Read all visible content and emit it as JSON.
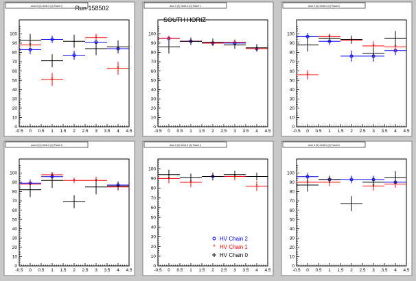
{
  "colors": {
    "background": "#c8c8c8",
    "pad": "#ffffff",
    "red": "#ff0000",
    "blue": "#0000ff",
    "black": "#000000"
  },
  "legend": {
    "entries": [
      {
        "label": "HV Chain 2",
        "series": "HV Chain 2"
      },
      {
        "label": "HV Chain 1",
        "series": "HV Chain 1"
      },
      {
        "label": "HV Chain 0",
        "series": "HV Chain 0"
      }
    ],
    "placement": "bottom-right of panel 5"
  },
  "chart_data": [
    {
      "type": "scatter",
      "panel_title": "dom 0 (0) Orbit 0 (0) Panel 0",
      "annotation": "Run 158502",
      "xlim": [
        -0.5,
        4.5
      ],
      "ylim": [
        0,
        115
      ],
      "x_ticks": [
        "-0.5",
        "0",
        "0.5",
        "1",
        "1.5",
        "2",
        "2.5",
        "3",
        "3.5",
        "4",
        "4.5"
      ],
      "y_ticks": [
        "0",
        "10",
        "20",
        "30",
        "40",
        "50",
        "60",
        "70",
        "80",
        "90",
        "100"
      ],
      "series": [
        {
          "name": "HV Chain 2",
          "color": "blue",
          "points": [
            {
              "x": 0,
              "y": 83,
              "ex": 0.5,
              "ey": 5
            },
            {
              "x": 1,
              "y": 94,
              "ex": 0.5,
              "ey": 4
            },
            {
              "x": 2,
              "y": 77,
              "ex": 0.5,
              "ey": 5
            },
            {
              "x": 3,
              "y": 91,
              "ex": 0.5,
              "ey": 5
            },
            {
              "x": 4,
              "y": 84,
              "ex": 0.5,
              "ey": 5
            }
          ]
        },
        {
          "name": "HV Chain 1",
          "color": "red",
          "points": [
            {
              "x": 0,
              "y": 88,
              "ex": 0.5,
              "ey": 5
            },
            {
              "x": 1,
              "y": 51,
              "ex": 0.5,
              "ey": 7
            },
            {
              "x": 3,
              "y": 96,
              "ex": 0.5,
              "ey": 4
            },
            {
              "x": 4,
              "y": 63,
              "ex": 0.5,
              "ey": 7
            }
          ]
        },
        {
          "name": "HV Chain 0",
          "color": "black",
          "points": [
            {
              "x": 0,
              "y": 93,
              "ex": 0.5,
              "ey": 7
            },
            {
              "x": 1,
              "y": 71,
              "ex": 0.5,
              "ey": 7
            },
            {
              "x": 2,
              "y": 92,
              "ex": 0.5,
              "ey": 7
            },
            {
              "x": 3,
              "y": 84,
              "ex": 0.5,
              "ey": 7
            },
            {
              "x": 4,
              "y": 86,
              "ex": 0.5,
              "ey": 7
            }
          ]
        }
      ]
    },
    {
      "type": "scatter",
      "panel_title": "dom 0 (0) Orbit 0 (0) Panel 1",
      "annotation": "SOUTH HORIZ",
      "xlim": [
        -0.5,
        4.5
      ],
      "ylim": [
        0,
        115
      ],
      "x_ticks": [
        "-0.5",
        "0",
        "0.5",
        "1",
        "1.5",
        "2",
        "2.5",
        "3",
        "3.5",
        "4",
        "4.5"
      ],
      "y_ticks": [
        "0",
        "10",
        "20",
        "30",
        "40",
        "50",
        "60",
        "70",
        "80",
        "90",
        "100"
      ],
      "series": [
        {
          "name": "HV Chain 2",
          "color": "blue",
          "points": [
            {
              "x": 0,
              "y": 95,
              "ex": 0.5,
              "ey": 3
            },
            {
              "x": 1,
              "y": 92,
              "ex": 0.5,
              "ey": 3
            },
            {
              "x": 2,
              "y": 90,
              "ex": 0.5,
              "ey": 3
            },
            {
              "x": 3,
              "y": 90,
              "ex": 0.5,
              "ey": 3
            },
            {
              "x": 4,
              "y": 84,
              "ex": 0.5,
              "ey": 3
            }
          ]
        },
        {
          "name": "HV Chain 1",
          "color": "red",
          "points": [
            {
              "x": 0,
              "y": 95,
              "ex": 0.5,
              "ey": 3
            },
            {
              "x": 1,
              "y": 92,
              "ex": 0.5,
              "ey": 3
            },
            {
              "x": 2,
              "y": 90,
              "ex": 0.5,
              "ey": 3
            },
            {
              "x": 3,
              "y": 91,
              "ex": 0.5,
              "ey": 3
            },
            {
              "x": 4,
              "y": 84,
              "ex": 0.5,
              "ey": 3
            }
          ]
        },
        {
          "name": "HV Chain 0",
          "color": "black",
          "points": [
            {
              "x": 0,
              "y": 86,
              "ex": 0.5,
              "ey": 7
            },
            {
              "x": 1,
              "y": 92,
              "ex": 0.5,
              "ey": 4
            },
            {
              "x": 2,
              "y": 91,
              "ex": 0.5,
              "ey": 4
            },
            {
              "x": 3,
              "y": 88,
              "ex": 0.5,
              "ey": 4
            },
            {
              "x": 4,
              "y": 85,
              "ex": 0.5,
              "ey": 4
            }
          ]
        }
      ]
    },
    {
      "type": "scatter",
      "panel_title": "dom 0 (0) Orbit 0 (0) Panel 2",
      "annotation": "",
      "xlim": [
        -0.5,
        4.5
      ],
      "ylim": [
        0,
        115
      ],
      "x_ticks": [
        "-0.5",
        "0",
        "0.5",
        "1",
        "1.5",
        "2",
        "2.5",
        "3",
        "3.5",
        "4",
        "4.5"
      ],
      "y_ticks": [
        "0",
        "10",
        "20",
        "30",
        "40",
        "50",
        "60",
        "70",
        "80",
        "90",
        "100"
      ],
      "series": [
        {
          "name": "HV Chain 2",
          "color": "blue",
          "points": [
            {
              "x": 0,
              "y": 97,
              "ex": 0.5,
              "ey": 4
            },
            {
              "x": 1,
              "y": 92,
              "ex": 0.5,
              "ey": 4
            },
            {
              "x": 2,
              "y": 76,
              "ex": 0.5,
              "ey": 6
            },
            {
              "x": 3,
              "y": 76,
              "ex": 0.5,
              "ey": 6
            },
            {
              "x": 4,
              "y": 82,
              "ex": 0.5,
              "ey": 5
            }
          ]
        },
        {
          "name": "HV Chain 1",
          "color": "red",
          "points": [
            {
              "x": 0,
              "y": 56,
              "ex": 0.5,
              "ey": 5
            },
            {
              "x": 1,
              "y": 97,
              "ex": 0.5,
              "ey": 3
            },
            {
              "x": 2,
              "y": 93,
              "ex": 0.5,
              "ey": 4
            },
            {
              "x": 3,
              "y": 87,
              "ex": 0.5,
              "ey": 5
            },
            {
              "x": 4,
              "y": 86,
              "ex": 0.5,
              "ey": 5
            }
          ]
        },
        {
          "name": "HV Chain 0",
          "color": "black",
          "points": [
            {
              "x": 0,
              "y": 88,
              "ex": 0.5,
              "ey": 7
            },
            {
              "x": 1,
              "y": 95,
              "ex": 0.5,
              "ey": 4
            },
            {
              "x": 2,
              "y": 94,
              "ex": 0.5,
              "ey": 4
            },
            {
              "x": 3,
              "y": 79,
              "ex": 0.5,
              "ey": 6
            },
            {
              "x": 4,
              "y": 95,
              "ex": 0.5,
              "ey": 8
            }
          ]
        }
      ]
    },
    {
      "type": "scatter",
      "panel_title": "dom 0 (0) Orbit 0 (0) Panel 3",
      "annotation": "",
      "xlim": [
        -0.5,
        4.5
      ],
      "ylim": [
        0,
        115
      ],
      "x_ticks": [
        "-0.5",
        "0",
        "0.5",
        "1",
        "1.5",
        "2",
        "2.5",
        "3",
        "3.5",
        "4",
        "4.5"
      ],
      "y_ticks": [
        "0",
        "10",
        "20",
        "30",
        "40",
        "50",
        "60",
        "70",
        "80",
        "90",
        "100"
      ],
      "series": [
        {
          "name": "HV Chain 2",
          "color": "blue",
          "points": [
            {
              "x": 0,
              "y": 89,
              "ex": 0.5,
              "ey": 4
            },
            {
              "x": 1,
              "y": 96,
              "ex": 0.5,
              "ey": 3
            },
            {
              "x": 4,
              "y": 87,
              "ex": 0.5,
              "ey": 4
            }
          ]
        },
        {
          "name": "HV Chain 1",
          "color": "red",
          "points": [
            {
              "x": 0,
              "y": 88,
              "ex": 0.5,
              "ey": 4
            },
            {
              "x": 1,
              "y": 98,
              "ex": 0.5,
              "ey": 3
            },
            {
              "x": 2,
              "y": 92,
              "ex": 0.5,
              "ey": 3
            },
            {
              "x": 3,
              "y": 92,
              "ex": 0.5,
              "ey": 4
            },
            {
              "x": 4,
              "y": 85,
              "ex": 0.5,
              "ey": 4
            }
          ]
        },
        {
          "name": "HV Chain 0",
          "color": "black",
          "points": [
            {
              "x": 0,
              "y": 82,
              "ex": 0.5,
              "ey": 8
            },
            {
              "x": 1,
              "y": 92,
              "ex": 0.5,
              "ey": 8
            },
            {
              "x": 2,
              "y": 69,
              "ex": 0.5,
              "ey": 7
            },
            {
              "x": 3,
              "y": 85,
              "ex": 0.5,
              "ey": 8
            },
            {
              "x": 4,
              "y": 86,
              "ex": 0.5,
              "ey": 4
            }
          ]
        }
      ]
    },
    {
      "type": "scatter",
      "panel_title": "dom 0 (0) Orbit 0 (0) Panel 4",
      "annotation": "",
      "xlim": [
        -0.5,
        4.5
      ],
      "ylim": [
        0,
        110
      ],
      "x_ticks": [
        "-0.5",
        "0",
        "0.5",
        "1",
        "1.5",
        "2",
        "2.5",
        "3",
        "3.5",
        "4",
        "4.5"
      ],
      "y_ticks": [
        "0",
        "10",
        "20",
        "30",
        "40",
        "50",
        "60",
        "70",
        "80",
        "90",
        "100"
      ],
      "series": [
        {
          "name": "HV Chain 2",
          "color": "blue",
          "points": [
            {
              "x": 2,
              "y": 92,
              "ex": 0.5,
              "ey": 3
            }
          ]
        },
        {
          "name": "HV Chain 1",
          "color": "red",
          "points": [
            {
              "x": 0,
              "y": 90,
              "ex": 0.5,
              "ey": 5
            },
            {
              "x": 1,
              "y": 86,
              "ex": 0.5,
              "ey": 5
            },
            {
              "x": 2,
              "y": 92,
              "ex": 0.5,
              "ey": 4
            },
            {
              "x": 3,
              "y": 92,
              "ex": 0.5,
              "ey": 4
            },
            {
              "x": 4,
              "y": 82,
              "ex": 0.5,
              "ey": 5
            }
          ]
        },
        {
          "name": "HV Chain 0",
          "color": "black",
          "points": [
            {
              "x": 0,
              "y": 94,
              "ex": 0.5,
              "ey": 5
            },
            {
              "x": 1,
              "y": 91,
              "ex": 0.5,
              "ey": 4
            },
            {
              "x": 2,
              "y": 92,
              "ex": 0.5,
              "ey": 4
            },
            {
              "x": 3,
              "y": 94,
              "ex": 0.5,
              "ey": 4
            },
            {
              "x": 4,
              "y": 92,
              "ex": 0.5,
              "ey": 4
            }
          ]
        }
      ]
    },
    {
      "type": "scatter",
      "panel_title": "dom 0 (0) Orbit 0 (0) Panel 5",
      "annotation": "",
      "xlim": [
        -0.5,
        4.5
      ],
      "ylim": [
        0,
        115
      ],
      "x_ticks": [
        "-0.5",
        "0",
        "0.5",
        "1",
        "1.5",
        "2",
        "2.5",
        "3",
        "3.5",
        "4",
        "4.5"
      ],
      "y_ticks": [
        "0",
        "10",
        "20",
        "30",
        "40",
        "50",
        "60",
        "70",
        "80",
        "90",
        "100"
      ],
      "series": [
        {
          "name": "HV Chain 2",
          "color": "blue",
          "points": [
            {
              "x": 0,
              "y": 96,
              "ex": 0.5,
              "ey": 4
            },
            {
              "x": 1,
              "y": 93,
              "ex": 0.5,
              "ey": 4
            },
            {
              "x": 2,
              "y": 93,
              "ex": 0.5,
              "ey": 4
            },
            {
              "x": 3,
              "y": 93,
              "ex": 0.5,
              "ey": 4
            },
            {
              "x": 4,
              "y": 90,
              "ex": 0.5,
              "ey": 4
            }
          ]
        },
        {
          "name": "HV Chain 1",
          "color": "red",
          "points": [
            {
              "x": 0,
              "y": 90,
              "ex": 0.5,
              "ey": 4
            },
            {
              "x": 1,
              "y": 90,
              "ex": 0.5,
              "ey": 4
            },
            {
              "x": 3,
              "y": 86,
              "ex": 0.5,
              "ey": 5
            },
            {
              "x": 4,
              "y": 88,
              "ex": 0.5,
              "ey": 4
            }
          ]
        },
        {
          "name": "HV Chain 0",
          "color": "black",
          "points": [
            {
              "x": 0,
              "y": 87,
              "ex": 0.5,
              "ey": 7
            },
            {
              "x": 1,
              "y": 93,
              "ex": 0.5,
              "ey": 4
            },
            {
              "x": 2,
              "y": 67,
              "ex": 0.5,
              "ey": 8
            },
            {
              "x": 3,
              "y": 90,
              "ex": 0.5,
              "ey": 5
            },
            {
              "x": 4,
              "y": 95,
              "ex": 0.5,
              "ey": 7
            }
          ]
        }
      ]
    }
  ]
}
